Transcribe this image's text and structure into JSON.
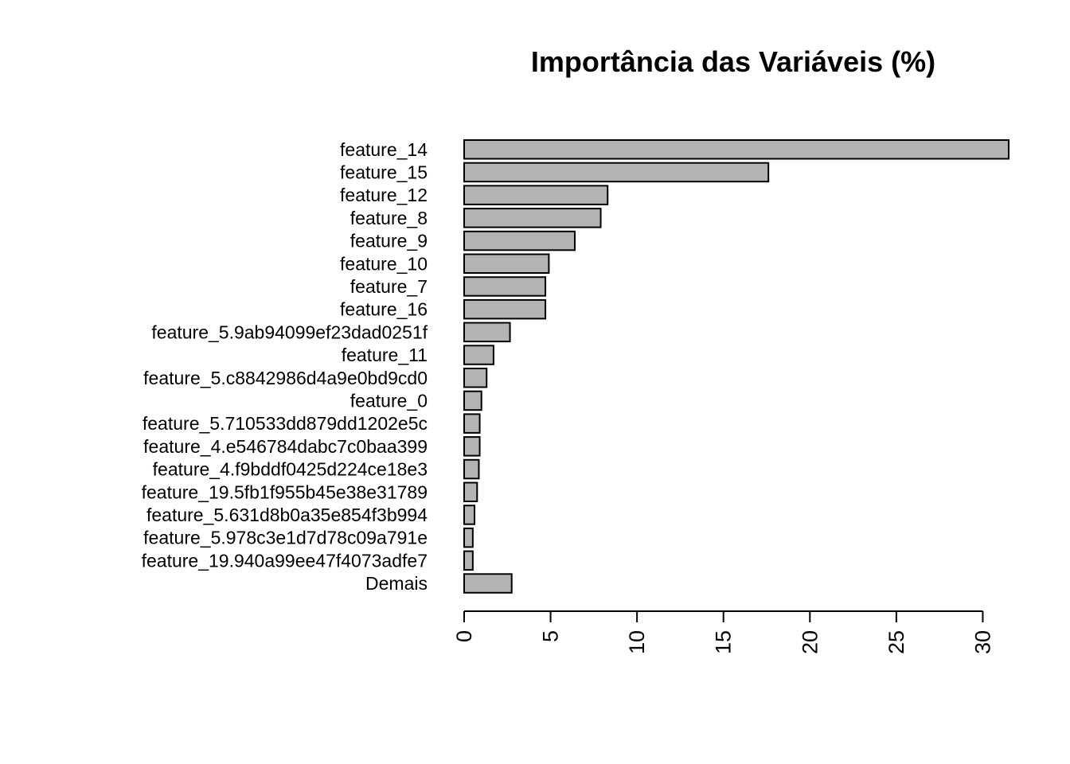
{
  "chart_data": {
    "type": "bar",
    "orientation": "horizontal",
    "title": "Importância das Variáveis (%)",
    "xlabel": "",
    "ylabel": "",
    "categories": [
      "feature_14",
      "feature_15",
      "feature_12",
      "feature_8",
      "feature_9",
      "feature_10",
      "feature_7",
      "feature_16",
      "feature_5.9ab94099ef23dad0251f",
      "feature_11",
      "feature_5.c8842986d4a9e0bd9cd0",
      "feature_0",
      "feature_5.710533dd879dd1202e5c",
      "feature_4.e546784dabc7c0baa399",
      "feature_4.f9bddf0425d224ce18e3",
      "feature_19.5fb1f955b45e38e31789",
      "feature_5.631d8b0a35e854f3b994",
      "feature_5.978c3e1d7d78c09a791e",
      "feature_19.940a99ee47f4073adfe7",
      "Demais"
    ],
    "values": [
      31.5,
      17.6,
      8.3,
      7.9,
      6.4,
      4.9,
      4.7,
      4.7,
      2.65,
      1.7,
      1.3,
      1.0,
      0.9,
      0.9,
      0.85,
      0.75,
      0.6,
      0.5,
      0.5,
      2.75
    ],
    "xlim": [
      0,
      31.5
    ],
    "xticks": [
      0,
      5,
      10,
      15,
      20,
      25,
      30
    ],
    "tick_label_rotation": "vertical",
    "bar_color": "#b3b3b3",
    "bar_border_color": "#000000",
    "grid": false,
    "legend": "none"
  }
}
